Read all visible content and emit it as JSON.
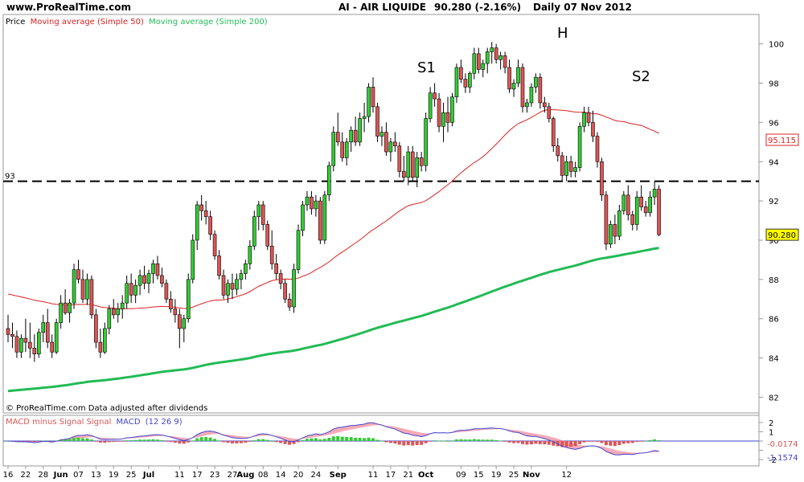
{
  "header": {
    "site": "www.ProRealTime.com",
    "instrument": "AI - AIR LIQUIDE",
    "quote": "90.280 (-2.16%)",
    "period": "Daily  07 Nov 2012"
  },
  "legend": {
    "price": "Price",
    "ma50": "Moving average (Simple 50)",
    "ma200": "Moving average (Simple 200)"
  },
  "footer_note": "© ProRealTime.com  Data adjusted after dividends",
  "annotations": {
    "s1": "S1",
    "h": "H",
    "s2": "S2",
    "support_level_label": "93"
  },
  "macd_legend": {
    "hist": "MACD minus Signal Signal",
    "macd": "MACD",
    "params": "(12 26 9)"
  },
  "price_badges": {
    "ma50": "95.115",
    "last": "90.280"
  },
  "macd_badges": {
    "hist": "-0.0174",
    "macd": "-1.1574"
  },
  "colors": {
    "up": "#33cc33",
    "down": "#dd5555",
    "ma50": "#dd2222",
    "ma200": "#22bb55",
    "macd_line": "#4444cc",
    "macd_fill": "#ee8899"
  },
  "chart_data": {
    "type": "candlestick",
    "price_axis": {
      "ticks": [
        82,
        84,
        86,
        88,
        90,
        92,
        94,
        96,
        98,
        100
      ],
      "range": [
        81.2,
        101.5
      ]
    },
    "macd_axis": {
      "ticks": [
        2,
        1,
        0,
        -1,
        -2
      ],
      "range": [
        -2.6,
        2.6
      ]
    },
    "date_axis": {
      "labels": [
        "16",
        "22",
        "28",
        "Jun",
        "07",
        "13",
        "19",
        "25",
        "Jul",
        "11",
        "17",
        "23",
        "27",
        "Aug",
        "08",
        "14",
        "20",
        "24",
        "Sep",
        "11",
        "17",
        "21",
        "Oct",
        "09",
        "15",
        "19",
        "25",
        "Nov",
        "12"
      ],
      "label_bar_index": [
        0,
        4,
        8,
        12,
        16,
        20,
        24,
        28,
        32,
        39,
        43,
        47,
        51,
        54,
        58,
        62,
        66,
        70,
        75,
        83,
        87,
        91,
        95,
        103,
        107,
        111,
        115,
        119,
        127
      ]
    },
    "support_level": 93,
    "candles": [
      [
        85.5,
        86.2,
        84.8,
        85.2
      ],
      [
        85.2,
        85.8,
        84.5,
        85.1
      ],
      [
        85.1,
        85.4,
        84.0,
        84.3
      ],
      [
        84.3,
        85.2,
        84.0,
        85.0
      ],
      [
        85.0,
        86.0,
        84.3,
        84.8
      ],
      [
        84.8,
        85.8,
        84.0,
        84.5
      ],
      [
        84.5,
        85.2,
        83.8,
        84.2
      ],
      [
        84.2,
        85.5,
        84.0,
        85.3
      ],
      [
        85.3,
        86.2,
        84.8,
        85.8
      ],
      [
        85.8,
        86.5,
        84.5,
        84.8
      ],
      [
        84.8,
        85.2,
        84.0,
        84.3
      ],
      [
        84.3,
        86.0,
        84.2,
        85.8
      ],
      [
        85.8,
        87.2,
        85.5,
        86.8
      ],
      [
        86.8,
        87.5,
        86.2,
        86.3
      ],
      [
        86.3,
        87.0,
        85.8,
        86.8
      ],
      [
        86.8,
        88.8,
        86.5,
        88.5
      ],
      [
        88.5,
        89.0,
        87.8,
        88.0
      ],
      [
        88.0,
        88.5,
        86.8,
        87.0
      ],
      [
        87.0,
        88.3,
        86.7,
        88.0
      ],
      [
        88.0,
        88.2,
        86.0,
        86.2
      ],
      [
        86.2,
        86.5,
        84.5,
        84.8
      ],
      [
        84.8,
        85.5,
        84.0,
        84.3
      ],
      [
        84.3,
        85.8,
        84.2,
        85.5
      ],
      [
        85.5,
        86.7,
        85.2,
        86.5
      ],
      [
        86.5,
        87.0,
        86.0,
        86.2
      ],
      [
        86.2,
        86.8,
        85.8,
        86.5
      ],
      [
        86.5,
        87.2,
        86.0,
        86.8
      ],
      [
        86.8,
        88.2,
        86.5,
        87.8
      ],
      [
        87.8,
        88.3,
        86.8,
        87.2
      ],
      [
        87.2,
        88.0,
        86.8,
        87.7
      ],
      [
        87.7,
        88.5,
        87.2,
        88.2
      ],
      [
        88.2,
        88.7,
        87.5,
        87.8
      ],
      [
        87.8,
        88.5,
        87.3,
        88.3
      ],
      [
        88.3,
        89.0,
        87.8,
        88.8
      ],
      [
        88.8,
        89.2,
        88.0,
        88.2
      ],
      [
        88.2,
        88.6,
        87.6,
        87.8
      ],
      [
        87.8,
        88.0,
        86.8,
        87.0
      ],
      [
        87.0,
        87.4,
        86.3,
        86.5
      ],
      [
        86.5,
        87.0,
        85.8,
        86.2
      ],
      [
        86.2,
        86.5,
        84.5,
        85.5
      ],
      [
        85.5,
        86.2,
        84.8,
        86.0
      ],
      [
        86.0,
        88.3,
        85.8,
        88.0
      ],
      [
        88.0,
        90.3,
        87.8,
        90.0
      ],
      [
        90.0,
        92.0,
        89.5,
        91.8
      ],
      [
        91.8,
        92.3,
        91.0,
        91.5
      ],
      [
        91.5,
        92.0,
        90.8,
        91.2
      ],
      [
        91.2,
        91.5,
        90.0,
        90.3
      ],
      [
        90.3,
        90.5,
        89.0,
        89.2
      ],
      [
        89.2,
        89.5,
        88.0,
        88.2
      ],
      [
        88.2,
        88.5,
        87.0,
        87.2
      ],
      [
        87.2,
        88.0,
        86.8,
        87.8
      ],
      [
        87.8,
        88.3,
        87.0,
        87.5
      ],
      [
        87.5,
        88.3,
        87.2,
        88.0
      ],
      [
        88.0,
        88.5,
        87.5,
        88.3
      ],
      [
        88.3,
        89.0,
        88.0,
        88.8
      ],
      [
        88.8,
        90.0,
        88.5,
        89.7
      ],
      [
        89.7,
        91.5,
        89.5,
        91.2
      ],
      [
        91.2,
        92.0,
        90.5,
        91.8
      ],
      [
        91.8,
        92.0,
        90.5,
        90.8
      ],
      [
        90.8,
        91.0,
        89.5,
        89.7
      ],
      [
        89.7,
        90.5,
        88.5,
        88.8
      ],
      [
        88.8,
        89.3,
        88.0,
        88.3
      ],
      [
        88.3,
        88.5,
        87.5,
        87.8
      ],
      [
        87.8,
        88.0,
        86.8,
        87.0
      ],
      [
        87.0,
        87.3,
        86.4,
        86.6
      ],
      [
        86.6,
        88.8,
        86.3,
        88.5
      ],
      [
        88.5,
        90.8,
        88.3,
        90.5
      ],
      [
        90.5,
        92.0,
        90.2,
        91.8
      ],
      [
        91.8,
        92.5,
        91.5,
        92.2
      ],
      [
        92.2,
        92.5,
        91.3,
        91.6
      ],
      [
        91.6,
        92.3,
        91.2,
        92.0
      ],
      [
        92.0,
        92.2,
        89.8,
        90.0
      ],
      [
        90.0,
        92.5,
        89.8,
        92.3
      ],
      [
        92.3,
        94.0,
        92.0,
        93.8
      ],
      [
        93.8,
        95.8,
        93.5,
        95.5
      ],
      [
        95.5,
        96.5,
        94.8,
        95.0
      ],
      [
        95.0,
        95.5,
        94.0,
        94.2
      ],
      [
        94.2,
        95.2,
        93.8,
        95.0
      ],
      [
        95.0,
        95.8,
        94.5,
        95.6
      ],
      [
        95.6,
        96.3,
        94.8,
        95.0
      ],
      [
        95.0,
        96.5,
        94.8,
        96.2
      ],
      [
        96.2,
        97.0,
        95.5,
        96.3
      ],
      [
        96.3,
        98.0,
        96.0,
        97.8
      ],
      [
        97.8,
        98.3,
        96.5,
        96.8
      ],
      [
        96.8,
        97.0,
        95.0,
        95.3
      ],
      [
        95.3,
        95.8,
        94.8,
        95.5
      ],
      [
        95.5,
        96.0,
        94.3,
        94.5
      ],
      [
        94.5,
        95.2,
        94.0,
        95.0
      ],
      [
        95.0,
        95.5,
        94.5,
        94.8
      ],
      [
        94.8,
        95.0,
        93.2,
        93.5
      ],
      [
        93.5,
        94.3,
        93.0,
        93.2
      ],
      [
        93.2,
        94.8,
        92.8,
        94.5
      ],
      [
        94.5,
        94.8,
        93.0,
        93.2
      ],
      [
        93.2,
        94.5,
        92.7,
        94.2
      ],
      [
        94.2,
        94.5,
        93.5,
        93.8
      ],
      [
        93.8,
        96.5,
        93.5,
        96.2
      ],
      [
        96.2,
        97.8,
        96.0,
        97.5
      ],
      [
        97.5,
        98.0,
        96.8,
        97.2
      ],
      [
        97.2,
        97.5,
        95.5,
        95.8
      ],
      [
        95.8,
        97.0,
        95.0,
        96.5
      ],
      [
        96.5,
        97.3,
        95.5,
        96.0
      ],
      [
        96.0,
        97.5,
        95.8,
        97.3
      ],
      [
        97.3,
        99.0,
        97.0,
        98.8
      ],
      [
        98.8,
        99.2,
        98.0,
        98.2
      ],
      [
        98.2,
        98.5,
        97.5,
        97.8
      ],
      [
        97.8,
        98.6,
        97.5,
        98.5
      ],
      [
        98.5,
        99.8,
        98.2,
        99.5
      ],
      [
        99.5,
        99.8,
        98.5,
        98.7
      ],
      [
        98.7,
        99.2,
        98.3,
        99.0
      ],
      [
        99.0,
        99.8,
        98.5,
        99.6
      ],
      [
        99.6,
        100.1,
        99.0,
        99.8
      ],
      [
        99.8,
        100.0,
        99.0,
        99.2
      ],
      [
        99.2,
        99.6,
        98.7,
        99.4
      ],
      [
        99.4,
        99.6,
        98.5,
        98.8
      ],
      [
        98.8,
        99.2,
        97.5,
        97.7
      ],
      [
        97.7,
        98.2,
        97.3,
        98.0
      ],
      [
        98.0,
        99.2,
        97.8,
        98.8
      ],
      [
        98.8,
        99.0,
        96.5,
        96.8
      ],
      [
        96.8,
        97.2,
        96.5,
        97.0
      ],
      [
        97.0,
        98.0,
        96.8,
        97.8
      ],
      [
        97.8,
        98.5,
        97.5,
        98.3
      ],
      [
        98.3,
        98.5,
        96.7,
        97.0
      ],
      [
        97.0,
        97.3,
        96.5,
        96.8
      ],
      [
        96.8,
        97.0,
        96.0,
        96.2
      ],
      [
        96.2,
        96.3,
        94.5,
        94.8
      ],
      [
        94.8,
        95.2,
        94.0,
        94.3
      ],
      [
        94.3,
        94.5,
        93.0,
        93.3
      ],
      [
        93.3,
        94.3,
        93.0,
        94.0
      ],
      [
        94.0,
        94.3,
        93.2,
        93.5
      ],
      [
        93.5,
        94.0,
        93.2,
        93.7
      ],
      [
        93.7,
        96.0,
        93.5,
        95.8
      ],
      [
        95.8,
        96.8,
        95.5,
        96.5
      ],
      [
        96.5,
        96.8,
        95.8,
        96.0
      ],
      [
        96.0,
        96.6,
        95.0,
        95.3
      ],
      [
        95.3,
        95.5,
        93.7,
        94.0
      ],
      [
        94.0,
        94.2,
        92.0,
        92.3
      ],
      [
        92.3,
        92.5,
        89.5,
        89.8
      ],
      [
        89.8,
        91.0,
        89.6,
        90.8
      ],
      [
        90.8,
        91.3,
        89.8,
        90.2
      ],
      [
        90.2,
        91.8,
        90.0,
        91.5
      ],
      [
        91.5,
        92.5,
        91.3,
        92.3
      ],
      [
        92.3,
        92.8,
        91.0,
        91.3
      ],
      [
        91.3,
        91.5,
        90.5,
        90.8
      ],
      [
        90.8,
        92.5,
        90.5,
        92.2
      ],
      [
        92.2,
        92.8,
        91.5,
        91.7
      ],
      [
        91.7,
        92.0,
        91.2,
        91.4
      ],
      [
        91.4,
        92.5,
        91.2,
        92.2
      ],
      [
        92.2,
        93.0,
        91.8,
        92.6
      ],
      [
        92.6,
        92.8,
        90.2,
        90.28
      ]
    ]
  }
}
